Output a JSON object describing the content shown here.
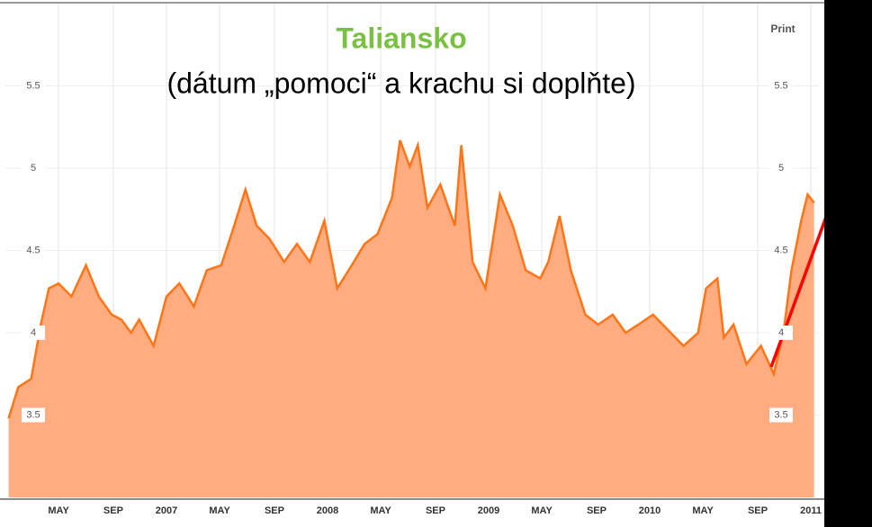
{
  "chart_data": {
    "type": "area",
    "title": "Taliansko",
    "subtitle": "(dátum „pomoci“ a krachu si doplňte)",
    "print_label": "Print",
    "color": "#ffad80",
    "line_color": "#ff7518",
    "title_color": "#7ac143",
    "x": [
      2006.02,
      2006.08,
      2006.16,
      2006.22,
      2006.27,
      2006.33,
      2006.41,
      2006.5,
      2006.58,
      2006.66,
      2006.72,
      2006.78,
      2006.83,
      2006.92,
      2007.0,
      2007.08,
      2007.17,
      2007.25,
      2007.34,
      2007.42,
      2007.49,
      2007.56,
      2007.64,
      2007.73,
      2007.81,
      2007.89,
      2007.98,
      2008.06,
      2008.15,
      2008.23,
      2008.31,
      2008.4,
      2008.45,
      2008.51,
      2008.56,
      2008.62,
      2008.7,
      2008.79,
      2008.83,
      2008.9,
      2008.98,
      2009.07,
      2009.15,
      2009.23,
      2009.32,
      2009.37,
      2009.44,
      2009.51,
      2009.6,
      2009.68,
      2009.77,
      2009.85,
      2009.93,
      2010.02,
      2010.13,
      2010.21,
      2010.3,
      2010.35,
      2010.42,
      2010.46,
      2010.52,
      2010.6,
      2010.69,
      2010.77,
      2010.83,
      2010.88,
      2010.94,
      2010.98,
      2011.02
    ],
    "values": [
      3.48,
      3.67,
      3.72,
      4.05,
      4.27,
      4.3,
      4.22,
      4.41,
      4.22,
      4.11,
      4.08,
      4.0,
      4.08,
      3.92,
      4.22,
      4.3,
      4.16,
      4.38,
      4.41,
      4.65,
      4.87,
      4.65,
      4.57,
      4.43,
      4.54,
      4.43,
      4.68,
      4.27,
      4.41,
      4.54,
      4.6,
      4.82,
      5.17,
      5.01,
      5.14,
      4.76,
      4.9,
      4.65,
      5.14,
      4.43,
      4.27,
      4.84,
      4.65,
      4.38,
      4.33,
      4.43,
      4.71,
      4.38,
      4.11,
      4.05,
      4.11,
      4.0,
      4.05,
      4.11,
      4.0,
      3.92,
      4.0,
      4.27,
      4.33,
      3.97,
      4.05,
      3.81,
      3.92,
      3.75,
      4.0,
      4.38,
      4.68,
      4.84,
      4.79
    ],
    "xlim": [
      2006,
      2011.05
    ],
    "xticks": [
      {
        "value": 2006.33,
        "label": "MAY"
      },
      {
        "value": 2006.67,
        "label": "SEP"
      },
      {
        "value": 2007,
        "label": "2007"
      },
      {
        "value": 2007.33,
        "label": "MAY"
      },
      {
        "value": 2007.67,
        "label": "SEP"
      },
      {
        "value": 2008,
        "label": "2008"
      },
      {
        "value": 2008.33,
        "label": "MAY"
      },
      {
        "value": 2008.67,
        "label": "SEP"
      },
      {
        "value": 2009,
        "label": "2009"
      },
      {
        "value": 2009.33,
        "label": "MAY"
      },
      {
        "value": 2009.67,
        "label": "SEP"
      },
      {
        "value": 2010,
        "label": "2010"
      },
      {
        "value": 2010.33,
        "label": "MAY"
      },
      {
        "value": 2010.67,
        "label": "SEP"
      },
      {
        "value": 2011,
        "label": "2011"
      }
    ],
    "ylim": [
      3,
      6
    ],
    "yticks": [
      3.5,
      4,
      4.5,
      5,
      5.5
    ],
    "grid": true
  }
}
